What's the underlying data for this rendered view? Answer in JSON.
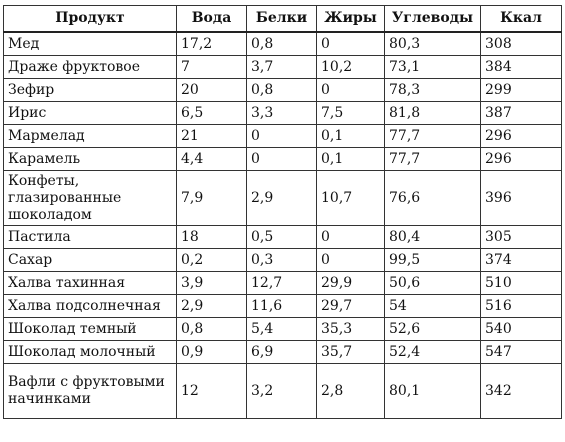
{
  "table": {
    "headers": [
      "Продукт",
      "Вода",
      "Белки",
      "Жиры",
      "Углеводы",
      "Ккал"
    ],
    "rows": [
      [
        "Мед",
        "17,2",
        "0,8",
        "0",
        "80,3",
        "308"
      ],
      [
        "Драже фруктовое",
        "7",
        "3,7",
        "10,2",
        "73,1",
        "384"
      ],
      [
        "Зефир",
        "20",
        "0,8",
        "0",
        "78,3",
        "299"
      ],
      [
        "Ирис",
        "6,5",
        "3,3",
        "7,5",
        "81,8",
        "387"
      ],
      [
        "Мармелад",
        "21",
        "0",
        "0,1",
        "77,7",
        "296"
      ],
      [
        "Карамель",
        "4,4",
        "0",
        "0,1",
        "77,7",
        "296"
      ],
      [
        "Конфеты, глазированные шоколадом",
        "7,9",
        "2,9",
        "10,7",
        "76,6",
        "396"
      ],
      [
        "Пастила",
        "18",
        "0,5",
        "0",
        "80,4",
        "305"
      ],
      [
        "Сахар",
        "0,2",
        "0,3",
        "0",
        "99,5",
        "374"
      ],
      [
        "Халва тахинная",
        "3,9",
        "12,7",
        "29,9",
        "50,6",
        "510"
      ],
      [
        "Халва подсолнечная",
        "2,9",
        "11,6",
        "29,7",
        "54",
        "516"
      ],
      [
        "Шоколад темный",
        "0,8",
        "5,4",
        "35,3",
        "52,6",
        "540"
      ],
      [
        "Шоколад молочный",
        "0,9",
        "6,9",
        "35,7",
        "52,4",
        "547"
      ],
      [
        "Вафли с фруктовыми начинками",
        "12",
        "3,2",
        "2,8",
        "80,1",
        "342"
      ]
    ]
  }
}
